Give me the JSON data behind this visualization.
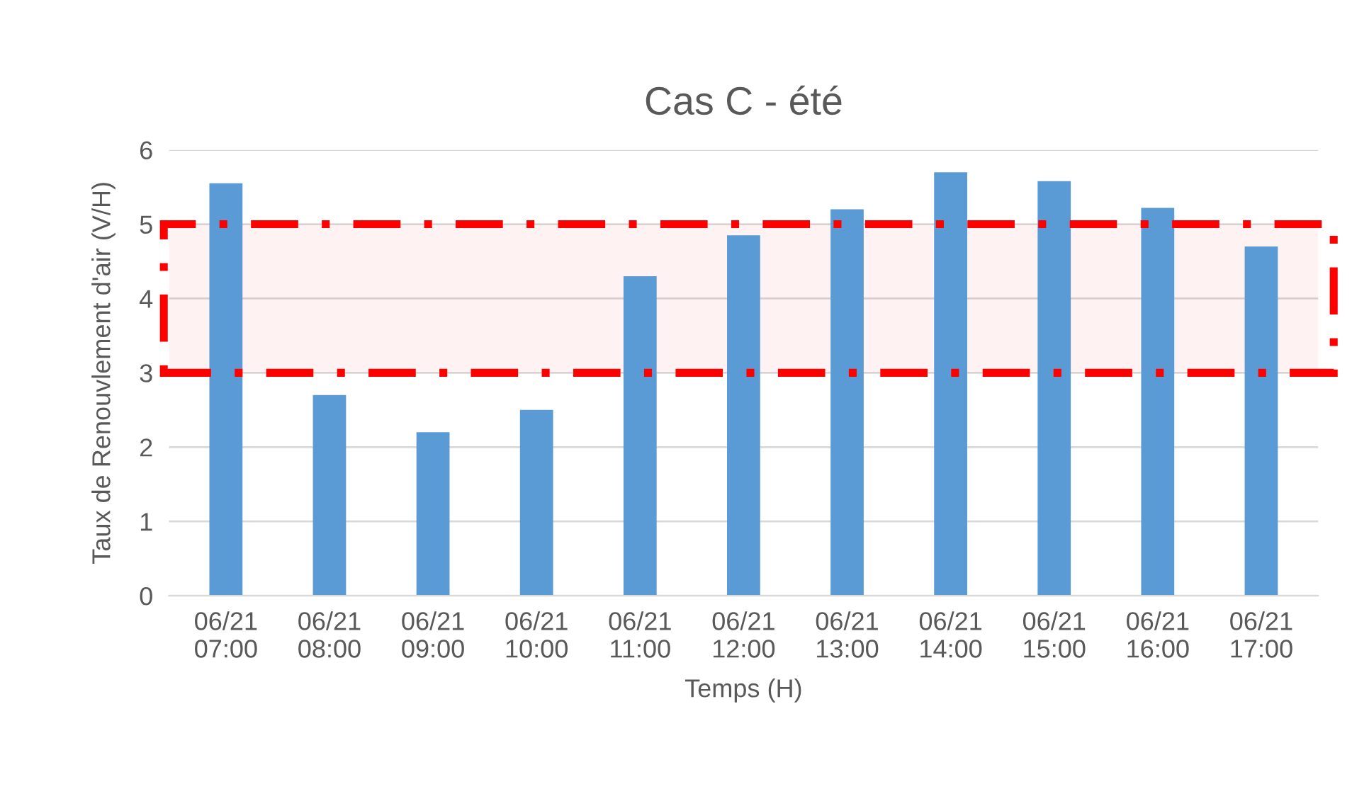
{
  "chart_data": {
    "type": "bar",
    "title": "Cas C - été",
    "xlabel": "Temps (H)",
    "ylabel": "Taux de Renouvlement d'air (V/H)",
    "categories": [
      "06/21\n07:00",
      "06/21\n08:00",
      "06/21\n09:00",
      "06/21\n10:00",
      "06/21\n11:00",
      "06/21\n12:00",
      "06/21\n13:00",
      "06/21\n14:00",
      "06/21\n15:00",
      "06/21\n16:00",
      "06/21\n17:00"
    ],
    "values": [
      5.55,
      2.7,
      2.2,
      2.5,
      4.3,
      4.85,
      5.2,
      5.7,
      5.58,
      5.22,
      4.7
    ],
    "color": "#5b9bd5",
    "ylim": [
      0,
      6
    ],
    "yticks": [
      0,
      1,
      2,
      3,
      4,
      5,
      6
    ],
    "grid": "y",
    "bands": [
      {
        "axis": "y",
        "from": 3,
        "to": 5,
        "color": "#ff0000"
      }
    ]
  }
}
